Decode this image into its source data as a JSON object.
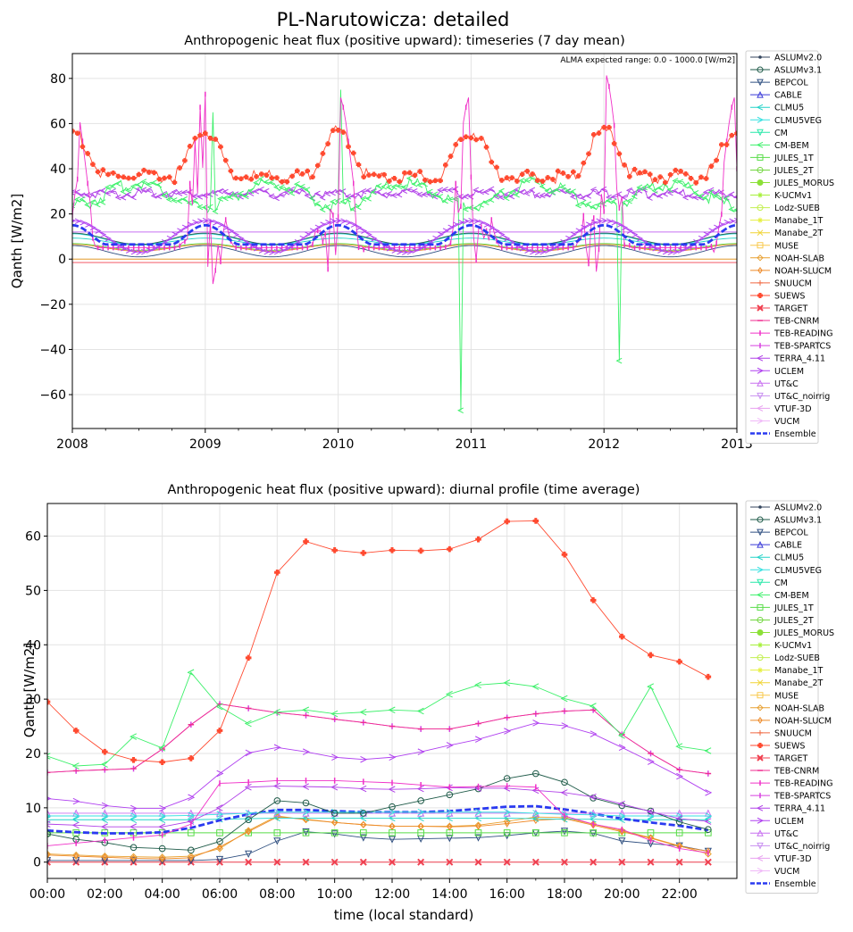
{
  "figure": {
    "suptitle": "PL-Narutowicza: detailed",
    "legend_entries": [
      "ASLUMv2.0",
      "ASLUMv3.1",
      "BEPCOL",
      "CABLE",
      "CLMU5",
      "CLMU5VEG",
      "CM",
      "CM-BEM",
      "JULES_1T",
      "JULES_2T",
      "JULES_MORUS",
      "K-UCMv1",
      "Lodz-SUEB",
      "Manabe_1T",
      "Manabe_2T",
      "MUSE",
      "NOAH-SLAB",
      "NOAH-SLUCM",
      "SNUUCM",
      "SUEWS",
      "TARGET",
      "TEB-CNRM",
      "TEB-READING",
      "TEB-SPARTCS",
      "TERRA_4.11",
      "UCLEM",
      "UT&C",
      "UT&C_noirrig",
      "VTUF-3D",
      "VUCM",
      "Ensemble"
    ],
    "legend_colors": [
      "#34465e",
      "#1e5a48",
      "#2f4f80",
      "#3a3ad8",
      "#22d3c8",
      "#35e0e0",
      "#26e8a8",
      "#3cf06a",
      "#58dc48",
      "#72d640",
      "#8ce038",
      "#a6f03a",
      "#c2f050",
      "#e6f040",
      "#f0d432",
      "#f8c84a",
      "#e8a030",
      "#ee8a28",
      "#f06840",
      "#ff4a30",
      "#f04050",
      "#f02c90",
      "#f030c8",
      "#d840e0",
      "#b040e8",
      "#b040f0",
      "#c870f0",
      "#c890f0",
      "#e8a0f0",
      "#f0b8f8",
      "#2a3af0"
    ],
    "legend_markers": [
      "dot",
      "circle",
      "tri-down",
      "tri-up",
      "tri-left",
      "tri-right",
      "tri-down",
      "tri-left",
      "square",
      "circle",
      "octagon",
      "star",
      "circle",
      "star",
      "x",
      "square",
      "diamond",
      "thin-diamond",
      "plus",
      "plus-filled",
      "x-filled",
      "hline",
      "vline",
      "vline",
      "tri-left",
      "tri-right",
      "tri-up",
      "tri-down",
      "tri-left",
      "tri-right",
      "dash"
    ]
  },
  "chart_data": [
    {
      "type": "line",
      "title": "Anthropogenic heat flux (positive upward): timeseries (7 day mean)",
      "annotation": "ALMA expected range: 0.0 - 1000.0 [W/m2]",
      "ylabel": "Qanth [W/m2]",
      "xlabel": "",
      "xlim": [
        2008,
        2013
      ],
      "ylim": [
        -75,
        91
      ],
      "x_ticks": [
        "2008",
        "2009",
        "2010",
        "2011",
        "2012",
        "2013"
      ],
      "y_ticks": [
        -60,
        -40,
        -20,
        0,
        20,
        40,
        60,
        80
      ],
      "grid": true,
      "legend_position": "right-outside",
      "series_summary": [
        {
          "name": "SUEWS",
          "winter_peak": 58,
          "summer_base": 35
        },
        {
          "name": "CM-BEM",
          "base": 30,
          "winter_level": 24,
          "spikes": [
            [
              2009.05,
              65
            ],
            [
              2010.02,
              75
            ],
            [
              2010.92,
              -67
            ],
            [
              2012.12,
              -45
            ]
          ]
        },
        {
          "name": "TEB-READING",
          "summer_base": 5,
          "winter_peak": 73,
          "peak_2012": 83
        },
        {
          "name": "TERRA_4.11",
          "value": 30
        },
        {
          "name": "UT&C",
          "value": 12
        },
        {
          "name": "Ensemble",
          "winter_peak": 15,
          "summer_base": 6
        },
        {
          "name": "NOAH-SLAB",
          "value": 0
        },
        {
          "name": "TARGET",
          "value": -1.5
        }
      ]
    },
    {
      "type": "line",
      "title": "Anthropogenic heat flux (positive upward): diurnal profile (time average)",
      "ylabel": "Qanth [W/m2]",
      "xlabel": "time (local standard)",
      "xlim": [
        0,
        24
      ],
      "ylim": [
        -3,
        66
      ],
      "x_ticks": [
        "00:00",
        "02:00",
        "04:00",
        "06:00",
        "08:00",
        "10:00",
        "12:00",
        "14:00",
        "16:00",
        "18:00",
        "20:00",
        "22:00"
      ],
      "y_ticks": [
        0,
        10,
        20,
        30,
        40,
        50,
        60
      ],
      "grid": true,
      "legend_position": "right-outside",
      "hours": [
        0,
        1,
        2,
        3,
        4,
        5,
        6,
        7,
        8,
        9,
        10,
        11,
        12,
        13,
        14,
        15,
        16,
        17,
        18,
        19,
        20,
        21,
        22,
        23
      ],
      "series": [
        {
          "name": "SUEWS",
          "values": [
            29.5,
            24.2,
            20.3,
            18.8,
            18.4,
            19.1,
            24.2,
            37.6,
            53.3,
            59.0,
            57.4,
            56.9,
            57.4,
            57.3,
            57.6,
            59.4,
            62.7,
            62.8,
            56.6,
            48.2,
            41.5,
            38.1,
            36.9,
            34.1
          ]
        },
        {
          "name": "CM-BEM",
          "values": [
            19.5,
            17.7,
            18.0,
            23.1,
            21.0,
            34.9,
            28.6,
            25.5,
            27.6,
            28.0,
            27.3,
            27.6,
            28.0,
            27.8,
            30.9,
            32.6,
            33.0,
            32.3,
            30.1,
            28.7,
            23.3,
            32.3,
            21.3,
            20.5
          ]
        },
        {
          "name": "TEB-CNRM",
          "values": [
            16.5,
            16.8,
            17.0,
            17.2,
            20.8,
            25.3,
            29.1,
            28.3,
            27.5,
            27.0,
            26.3,
            25.7,
            25.0,
            24.5,
            24.5,
            25.5,
            26.6,
            27.3,
            27.8,
            28.0,
            23.5,
            20.0,
            17.0,
            16.3
          ]
        },
        {
          "name": "TEB-SPARTCS",
          "values": [
            16.5,
            16.8,
            17.0,
            17.2,
            20.8,
            25.3,
            29.1,
            28.3,
            27.5,
            27.0,
            26.3,
            25.7,
            25.0,
            24.5,
            24.5,
            25.5,
            26.6,
            27.3,
            27.8,
            28.0,
            23.5,
            20.0,
            17.0,
            16.3
          ]
        },
        {
          "name": "UCLEM",
          "values": [
            11.7,
            11.2,
            10.4,
            9.9,
            9.9,
            11.9,
            16.3,
            20.1,
            21.1,
            20.3,
            19.3,
            18.9,
            19.3,
            20.3,
            21.5,
            22.6,
            24.1,
            25.6,
            25.1,
            23.6,
            21.1,
            18.5,
            15.8,
            12.8
          ]
        },
        {
          "name": "TEB-READING",
          "values": [
            3.0,
            3.5,
            4.0,
            4.5,
            5.0,
            7.0,
            14.5,
            14.7,
            15.0,
            15.0,
            15.0,
            14.8,
            14.6,
            14.2,
            13.8,
            13.9,
            14.0,
            13.8,
            8.5,
            7.0,
            6.0,
            4.0,
            2.5,
            1.7
          ]
        },
        {
          "name": "TERRA_4.11",
          "values": [
            7.0,
            6.8,
            6.5,
            6.5,
            6.5,
            7.5,
            10.0,
            13.8,
            14.0,
            13.9,
            13.8,
            13.5,
            13.4,
            13.5,
            13.7,
            13.6,
            13.6,
            13.2,
            12.8,
            12.0,
            10.7,
            9.3,
            8.0,
            7.5
          ]
        },
        {
          "name": "ASLUMv3.1",
          "values": [
            5.2,
            4.2,
            3.6,
            2.7,
            2.5,
            2.2,
            3.8,
            7.8,
            11.3,
            10.9,
            9.0,
            9.0,
            10.2,
            11.3,
            12.4,
            13.5,
            15.4,
            16.3,
            14.7,
            11.8,
            10.4,
            9.4,
            7.4,
            6.0
          ]
        },
        {
          "name": "CLMU5VEG",
          "values": [
            8.5,
            8.5,
            8.5,
            8.5,
            8.5,
            8.6,
            8.8,
            9.0,
            9.2,
            9.2,
            9.2,
            9.2,
            9.2,
            9.2,
            9.2,
            9.2,
            9.2,
            9.0,
            8.8,
            8.7,
            8.5,
            8.5,
            8.5,
            8.5
          ]
        },
        {
          "name": "UT&C",
          "values": [
            9.0,
            9.0,
            9.0,
            9.0,
            9.0,
            9.0,
            9.0,
            9.0,
            9.0,
            9.0,
            9.0,
            9.0,
            9.0,
            9.0,
            9.0,
            9.0,
            9.0,
            9.0,
            9.0,
            9.0,
            9.0,
            9.0,
            9.0,
            9.0
          ]
        },
        {
          "name": "Ensemble",
          "values": [
            5.8,
            5.5,
            5.3,
            5.3,
            5.5,
            6.3,
            7.7,
            8.8,
            9.6,
            9.6,
            9.4,
            9.2,
            9.2,
            9.2,
            9.4,
            9.8,
            10.2,
            10.3,
            9.7,
            8.9,
            8.0,
            7.3,
            6.7,
            5.9
          ]
        },
        {
          "name": "CLMU5",
          "values": [
            7.8,
            7.8,
            7.8,
            7.8,
            7.8,
            7.8,
            7.9,
            8.0,
            8.1,
            8.1,
            8.1,
            8.1,
            8.1,
            8.1,
            8.1,
            8.1,
            8.1,
            8.0,
            7.9,
            7.9,
            7.8,
            7.8,
            7.8,
            7.8
          ]
        },
        {
          "name": "NOAH-SLUCM",
          "values": [
            1.3,
            1.1,
            0.9,
            0.7,
            0.6,
            0.8,
            2.8,
            5.6,
            8.3,
            7.9,
            7.3,
            6.9,
            6.6,
            6.6,
            6.5,
            6.6,
            7.1,
            7.7,
            8.0,
            6.8,
            5.6,
            4.4,
            2.9,
            2.0
          ]
        },
        {
          "name": "NOAH-SLAB",
          "values": [
            1.5,
            1.3,
            1.1,
            1.0,
            0.9,
            1.1,
            2.5,
            5.8,
            8.5,
            7.8,
            7.3,
            6.9,
            6.6,
            6.6,
            6.6,
            6.8,
            7.5,
            8.3,
            8.2,
            7.0,
            5.8,
            4.5,
            3.0,
            1.5
          ]
        },
        {
          "name": "JULES_1T",
          "values": [
            5.4,
            5.4,
            5.4,
            5.4,
            5.4,
            5.4,
            5.4,
            5.4,
            5.4,
            5.4,
            5.4,
            5.4,
            5.4,
            5.4,
            5.4,
            5.4,
            5.4,
            5.4,
            5.4,
            5.4,
            5.4,
            5.4,
            5.4,
            5.4
          ]
        },
        {
          "name": "BEPCOL",
          "values": [
            0.3,
            0.3,
            0.3,
            0.3,
            0.3,
            0.3,
            0.5,
            1.5,
            3.9,
            5.6,
            5.2,
            4.5,
            4.2,
            4.3,
            4.4,
            4.5,
            4.9,
            5.4,
            5.7,
            5.3,
            3.9,
            3.4,
            3.0,
            2.0
          ]
        },
        {
          "name": "TARGET",
          "values": [
            0,
            0,
            0,
            0,
            0,
            0,
            0,
            0,
            0,
            0,
            0,
            0,
            0,
            0,
            0,
            0,
            0,
            0,
            0,
            0,
            0,
            0,
            0,
            0
          ]
        }
      ]
    }
  ]
}
